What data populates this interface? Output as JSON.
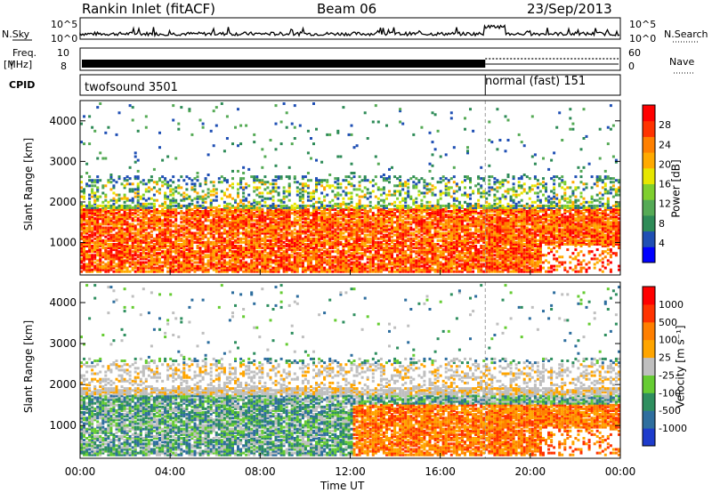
{
  "header": {
    "title": "Rankin Inlet (fitACF)",
    "beam": "Beam 06",
    "date": "23/Sep/2013"
  },
  "strip": {
    "nsky_label": "N.Sky",
    "nsearch_label": "N.Search",
    "noise_ticks": [
      "10^5",
      "10^0"
    ],
    "freq_label_1": "Freq.",
    "freq_label_2": "[MHz]",
    "freq_ticks": [
      "10",
      "8"
    ],
    "nave_label": "Nave",
    "nave_ticks": [
      "60",
      "0"
    ],
    "cpid_label": "CPID",
    "cpid_left": "twofsound 3501",
    "cpid_right": "normal (fast) 151",
    "cpid_switch_hour": 18
  },
  "chart_data": [
    {
      "type": "heatmap",
      "parameter": "power",
      "ylabel": "Slant Range [km]",
      "xlim_hours": [
        0,
        24
      ],
      "ylim_km": [
        200,
        4500
      ],
      "y_ticks": [
        1000,
        2000,
        3000,
        4000
      ],
      "colorbar_label": "Power [dB]",
      "colorbar_ticks": [
        "28",
        "24",
        "20",
        "16",
        "12",
        "8",
        "4"
      ],
      "colors": [
        "#0000ff",
        "#1f4fb4",
        "#2e8b57",
        "#55aa55",
        "#7fcf2f",
        "#e6e600",
        "#ffaa00",
        "#ff8000",
        "#ff3300",
        "#ff0000"
      ]
    },
    {
      "type": "heatmap",
      "parameter": "velocity",
      "ylabel": "Slant Range [km]",
      "xlabel": "Time UT",
      "x_ticks": [
        "00:00",
        "04:00",
        "08:00",
        "12:00",
        "16:00",
        "20:00",
        "00:00"
      ],
      "xlim_hours": [
        0,
        24
      ],
      "ylim_km": [
        200,
        4500
      ],
      "y_ticks": [
        1000,
        2000,
        3000,
        4000
      ],
      "colorbar_label": "Velocity [m s⁻¹]",
      "colorbar_ticks": [
        "1000",
        "500",
        "100",
        "25",
        "-25",
        "-100",
        "-500",
        "-1000"
      ],
      "colors": [
        "#1e3ccc",
        "#2e6e9e",
        "#2f8f5f",
        "#66cc33",
        "#bfbfbf",
        "#ffa500",
        "#ff7f00",
        "#ff3300",
        "#ff0000"
      ]
    }
  ]
}
